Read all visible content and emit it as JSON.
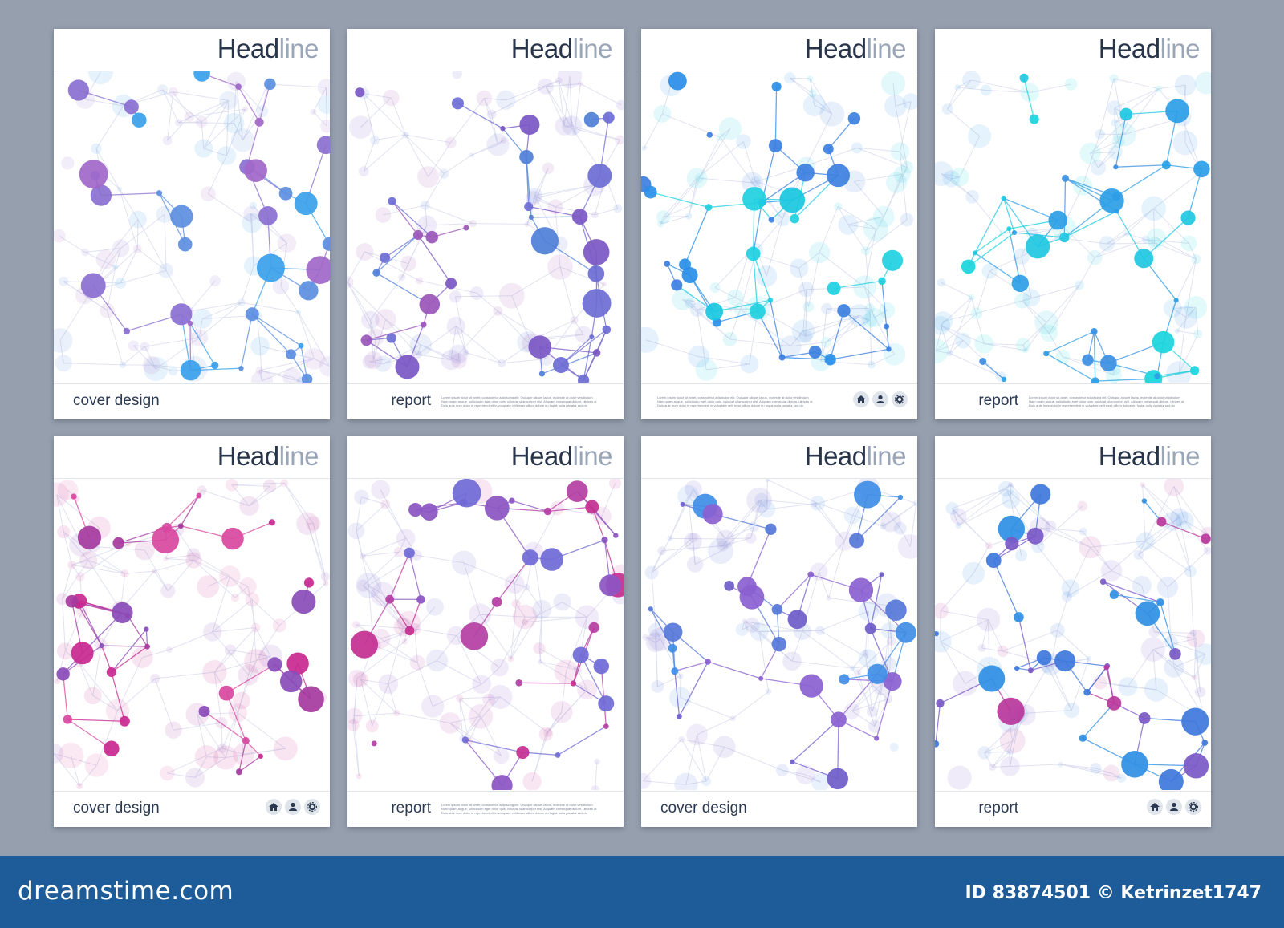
{
  "headline": {
    "strong": "Head",
    "light": "line"
  },
  "cards": [
    {
      "label": "cover design",
      "label_side": "left",
      "lorem": false,
      "icons": false,
      "palette": [
        "#8a6fd0",
        "#5c8ee0",
        "#a167c9",
        "#3aa0ea"
      ]
    },
    {
      "label": "report",
      "label_side": "right",
      "lorem": true,
      "icons": false,
      "palette": [
        "#7b57c4",
        "#4f7fd8",
        "#9a56b9",
        "#6d6dd4"
      ]
    },
    {
      "label": "",
      "label_side": "left",
      "lorem": true,
      "icons": true,
      "palette": [
        "#2a8ee8",
        "#19c7e0",
        "#3c7fe0",
        "#1fd0df"
      ]
    },
    {
      "label": "report",
      "label_side": "right",
      "lorem": true,
      "icons": false,
      "palette": [
        "#21c7e2",
        "#2b9ee6",
        "#19d5dc",
        "#3b8fe3"
      ]
    },
    {
      "label": "cover design",
      "label_side": "left",
      "lorem": false,
      "icons": true,
      "palette": [
        "#c8288f",
        "#a53a9e",
        "#d8489f",
        "#8a4cb8"
      ]
    },
    {
      "label": "report",
      "label_side": "right",
      "lorem": true,
      "icons": false,
      "palette": [
        "#c32f90",
        "#8b55c2",
        "#6f6ad6",
        "#b43ea2"
      ]
    },
    {
      "label": "cover design",
      "label_side": "left",
      "lorem": false,
      "icons": false,
      "palette": [
        "#6f5cc9",
        "#3f8de6",
        "#5577d8",
        "#8a5fd0"
      ]
    },
    {
      "label": "report",
      "label_side": "right",
      "lorem": false,
      "icons": true,
      "palette": [
        "#3e78dc",
        "#7a58c6",
        "#b8379c",
        "#2f8fe4"
      ]
    }
  ],
  "lorem_lines": [
    "Lorem ipsum dolor sit amet, consectetur adipiscing elit. Quisque aliquet lacus, molestie at dolor vestibulum",
    "Nam quam augue, sollicitudin eget dolor quis, volutpat ullamcorper nisl. Aliquam consequat dictum, ultrices at",
    "Duis aute irure dolor in reprehenderit in voluptate velit esse cillum dolore eu fugiat nulla pariatur sed do"
  ],
  "icon_names": [
    "home-icon",
    "user-icon",
    "gear-icon"
  ],
  "footer_bar": {
    "brand": "dreamstime.com",
    "credit": "ID 83874501 © Ketrinzet1747"
  },
  "colors": {
    "background": "#959fad",
    "bar": "#1d5c98",
    "headline": "#27344a",
    "headline_light": "#9aa6b8"
  }
}
